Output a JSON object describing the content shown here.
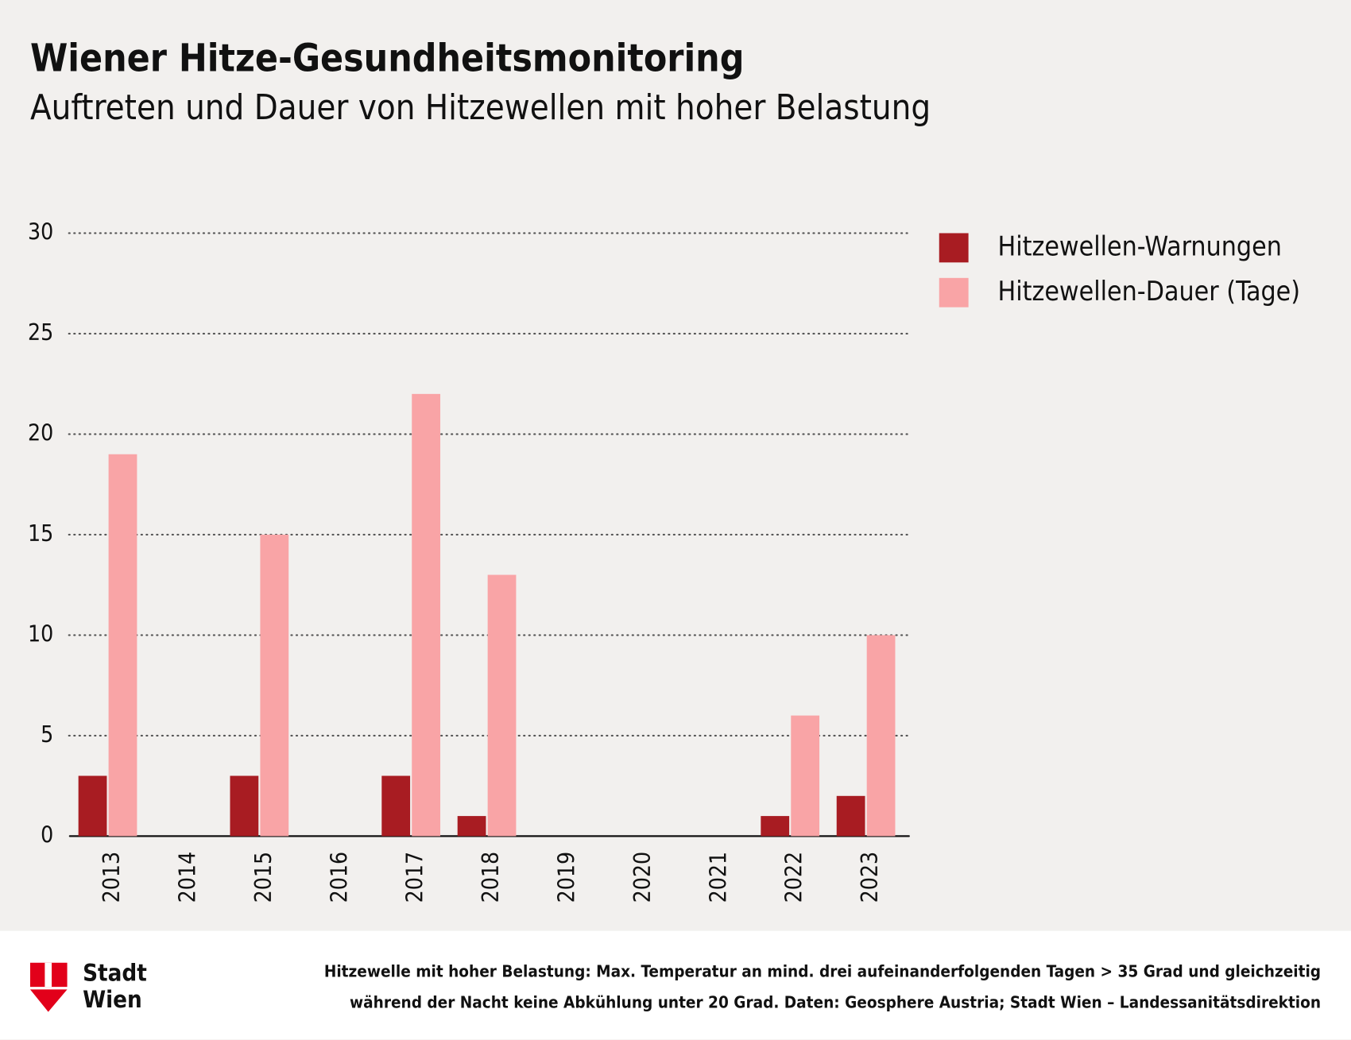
{
  "chart_data": {
    "type": "bar",
    "title": "Wiener Hitze-Gesundheitsmonitoring",
    "subtitle": "Auftreten und Dauer von Hitzewellen mit hoher Belastung",
    "categories": [
      "2013",
      "2014",
      "2015",
      "2016",
      "2017",
      "2018",
      "2019",
      "2020",
      "2021",
      "2022",
      "2023"
    ],
    "series": [
      {
        "name": "Hitzewellen-Warnungen",
        "color": "#a81c22",
        "values": [
          3,
          0,
          3,
          0,
          3,
          1,
          0,
          0,
          0,
          1,
          2
        ]
      },
      {
        "name": "Hitzewellen-Dauer (Tage)",
        "color": "#f9a4a6",
        "values": [
          19,
          0,
          15,
          0,
          22,
          13,
          0,
          0,
          0,
          6,
          10
        ]
      }
    ],
    "ylim": [
      0,
      30
    ],
    "yticks": [
      0,
      5,
      10,
      15,
      20,
      25,
      30
    ],
    "grid": true,
    "legend": "right"
  },
  "footer": {
    "logo": [
      "Stadt",
      "Wien"
    ],
    "note": [
      "Hitzewelle mit hoher Belastung: Max. Temperatur an mind. drei aufeinanderfolgenden Tagen > 35 Grad und gleichzeitig",
      "während der Nacht keine Abkühlung unter 20 Grad. Daten: Geosphere Austria; Stadt Wien – Landessanitätsdirektion"
    ]
  }
}
